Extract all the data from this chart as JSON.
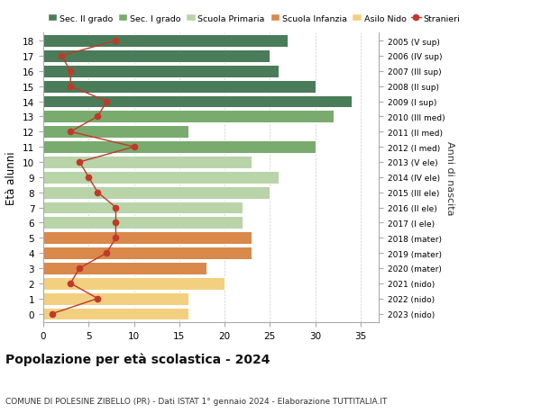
{
  "ages": [
    18,
    17,
    16,
    15,
    14,
    13,
    12,
    11,
    10,
    9,
    8,
    7,
    6,
    5,
    4,
    3,
    2,
    1,
    0
  ],
  "right_labels": [
    "2005 (V sup)",
    "2006 (IV sup)",
    "2007 (III sup)",
    "2008 (II sup)",
    "2009 (I sup)",
    "2010 (III med)",
    "2011 (II med)",
    "2012 (I med)",
    "2013 (V ele)",
    "2014 (IV ele)",
    "2015 (III ele)",
    "2016 (II ele)",
    "2017 (I ele)",
    "2018 (mater)",
    "2019 (mater)",
    "2020 (mater)",
    "2021 (nido)",
    "2022 (nido)",
    "2023 (nido)"
  ],
  "bar_values": [
    27,
    25,
    26,
    30,
    34,
    32,
    16,
    30,
    23,
    26,
    25,
    22,
    22,
    23,
    23,
    18,
    20,
    16,
    16
  ],
  "stranieri_values": [
    8,
    2,
    3,
    3,
    7,
    6,
    3,
    10,
    4,
    5,
    6,
    8,
    8,
    8,
    7,
    4,
    3,
    6,
    1
  ],
  "bar_colors": [
    "#4a7c59",
    "#4a7c59",
    "#4a7c59",
    "#4a7c59",
    "#4a7c59",
    "#7aab6e",
    "#7aab6e",
    "#7aab6e",
    "#b8d4a8",
    "#b8d4a8",
    "#b8d4a8",
    "#b8d4a8",
    "#b8d4a8",
    "#d9894a",
    "#d9894a",
    "#d9894a",
    "#f2d080",
    "#f2d080",
    "#f2d080"
  ],
  "legend_labels": [
    "Sec. II grado",
    "Sec. I grado",
    "Scuola Primaria",
    "Scuola Infanzia",
    "Asilo Nido",
    "Stranieri"
  ],
  "legend_colors": [
    "#4a7c59",
    "#7aab6e",
    "#b8d4a8",
    "#d9894a",
    "#f2d080",
    "#c0392b"
  ],
  "stranieri_color": "#c0392b",
  "title": "Popolazione per età scolastica - 2024",
  "subtitle": "COMUNE DI POLESINE ZIBELLO (PR) - Dati ISTAT 1° gennaio 2024 - Elaborazione TUTTITALIA.IT",
  "ylabel": "Età alunni",
  "right_ylabel": "Anni di nascita",
  "xlim": [
    0,
    37
  ],
  "xticks": [
    0,
    5,
    10,
    15,
    20,
    25,
    30,
    35
  ],
  "background_color": "#ffffff",
  "grid_color": "#cccccc"
}
